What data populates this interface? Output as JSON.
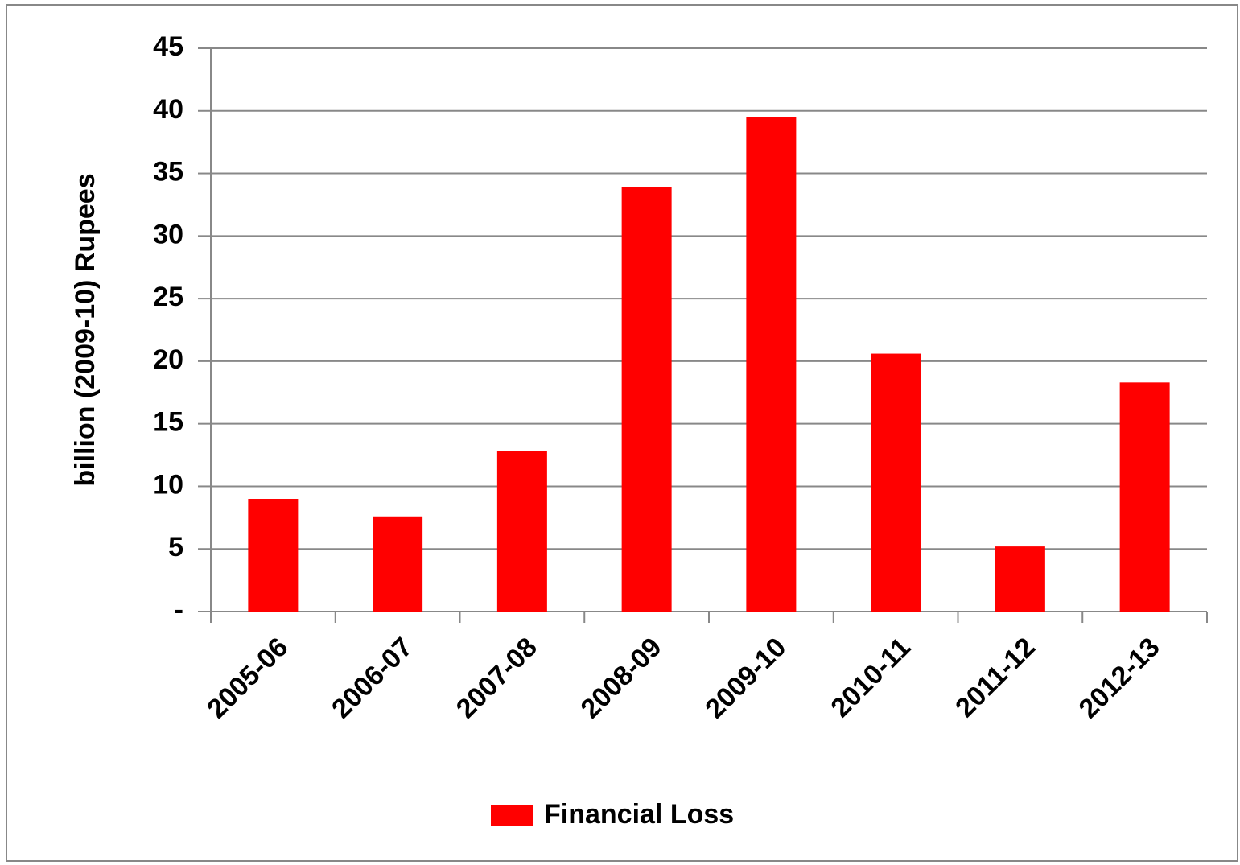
{
  "chart_data": {
    "type": "bar",
    "y_label": "billion (2009-10) Rupees",
    "categories": [
      "2005-06",
      "2006-07",
      "2007-08",
      "2008-09",
      "2009-10",
      "2010-11",
      "2011-12",
      "2012-13"
    ],
    "series": [
      {
        "name": "Financial Loss",
        "color": "#ff0000",
        "values": [
          9.0,
          7.6,
          12.8,
          33.9,
          39.5,
          20.6,
          5.2,
          18.3
        ]
      }
    ],
    "ylim": [
      0,
      45
    ],
    "yticks": [
      {
        "value": 0,
        "label": "-"
      },
      5,
      10,
      15,
      20,
      25,
      30,
      35,
      40,
      45
    ],
    "grid": true,
    "legend": "bottom"
  }
}
